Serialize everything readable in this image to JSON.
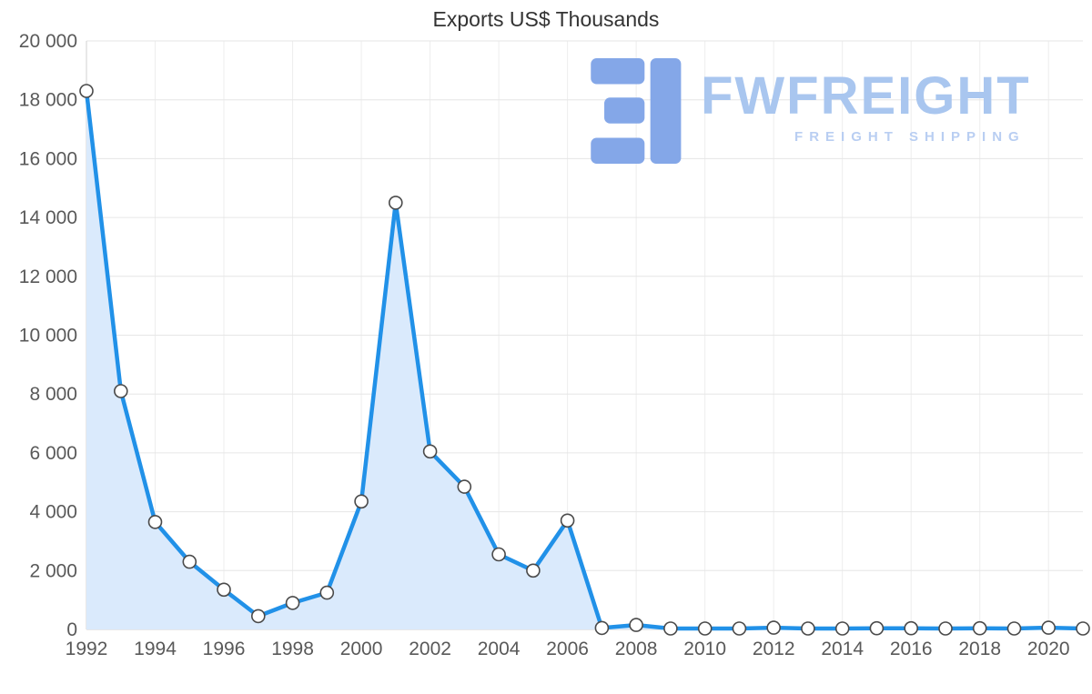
{
  "title": "Exports US$ Thousands",
  "logo": {
    "text": "FWFREIGHT",
    "subtitle": "FREIGHT SHIPPING"
  },
  "chart_data": {
    "type": "area",
    "title": "Exports US$ Thousands",
    "xlabel": "",
    "ylabel": "",
    "x": [
      1992,
      1993,
      1994,
      1995,
      1996,
      1997,
      1998,
      1999,
      2000,
      2001,
      2002,
      2003,
      2004,
      2005,
      2006,
      2007,
      2008,
      2009,
      2010,
      2011,
      2012,
      2013,
      2014,
      2015,
      2016,
      2017,
      2018,
      2019,
      2020,
      2021
    ],
    "values": [
      18300,
      8100,
      3650,
      2300,
      1350,
      450,
      900,
      1250,
      4350,
      14500,
      6050,
      4850,
      2550,
      2000,
      3700,
      50,
      150,
      30,
      30,
      30,
      60,
      30,
      30,
      40,
      40,
      30,
      40,
      30,
      60,
      30
    ],
    "ylim": [
      0,
      20000
    ],
    "y_ticks": [
      0,
      2000,
      4000,
      6000,
      8000,
      10000,
      12000,
      14000,
      16000,
      18000,
      20000
    ],
    "y_tick_labels": [
      "0",
      "2 000",
      "4 000",
      "6 000",
      "8 000",
      "10 000",
      "12 000",
      "14 000",
      "16 000",
      "18 000",
      "20 000"
    ],
    "x_ticks": [
      1992,
      1994,
      1996,
      1998,
      2000,
      2002,
      2004,
      2006,
      2008,
      2010,
      2012,
      2014,
      2016,
      2018,
      2020
    ],
    "x_tick_labels": [
      "1992",
      "1994",
      "1996",
      "1998",
      "2000",
      "2002",
      "2004",
      "2006",
      "2008",
      "2010",
      "2012",
      "2014",
      "2016",
      "2018",
      "2020"
    ],
    "grid": true,
    "legend": "none",
    "colors": {
      "line": "#2191e8",
      "fill": "#daeafc",
      "marker_fill": "#ffffff",
      "marker_stroke": "#4a4a4a",
      "grid": "#e6e6e6",
      "grid_vertical": "#ededed",
      "axis_line": "#d0d0d0",
      "axis_text": "#595959",
      "title": "#333333",
      "logo_text": "#a9c6ef",
      "logo_icon": "#84a7e8"
    }
  }
}
